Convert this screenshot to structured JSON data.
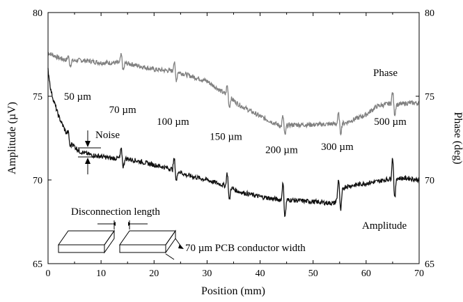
{
  "chart_data": {
    "type": "line",
    "xlabel": "Position (mm)",
    "ylabel_left": "Amplitude (µV)",
    "ylabel_right": "Phase (deg)",
    "xlim": [
      0,
      70
    ],
    "ylim_left": [
      65,
      80
    ],
    "ylim_right": [
      65,
      80
    ],
    "x_ticks": [
      "0",
      "10",
      "20",
      "30",
      "40",
      "50",
      "60",
      "70"
    ],
    "y_ticks_left": [
      "65",
      "70",
      "75",
      "80"
    ],
    "y_ticks_right": [
      "65",
      "70",
      "75",
      "80"
    ],
    "grid": false,
    "series": [
      {
        "name": "Phase",
        "color": "#808080",
        "x": [
          0,
          2,
          4,
          6,
          8,
          10,
          14,
          16,
          20,
          24,
          26,
          30,
          34,
          36,
          40,
          44,
          46,
          50,
          54,
          56,
          60,
          62,
          65,
          66,
          68,
          70
        ],
        "y": [
          77.6,
          77.3,
          77.1,
          77.15,
          77.1,
          77.0,
          77.0,
          76.9,
          76.6,
          76.5,
          76.3,
          75.9,
          75.0,
          74.5,
          73.8,
          73.2,
          73.3,
          73.3,
          73.35,
          73.4,
          73.9,
          74.4,
          74.6,
          74.5,
          74.6,
          74.6
        ]
      },
      {
        "name": "Amplitude",
        "color": "#111111",
        "x": [
          0,
          0.5,
          1,
          2,
          3,
          4,
          5,
          6,
          8,
          10,
          12,
          14,
          16,
          20,
          24,
          26,
          30,
          34,
          36,
          40,
          44,
          46,
          50,
          54,
          56,
          60,
          62,
          65,
          66,
          68,
          70
        ],
        "y": [
          76.6,
          75.4,
          74.8,
          73.8,
          73.1,
          72.4,
          72.0,
          71.7,
          71.5,
          71.4,
          71.3,
          71.3,
          71.2,
          70.9,
          70.6,
          70.3,
          70.0,
          69.6,
          69.3,
          69.0,
          68.8,
          68.8,
          68.7,
          68.6,
          69.6,
          69.8,
          69.9,
          70.1,
          70.1,
          70.1,
          70.0
        ]
      }
    ],
    "spikes": [
      {
        "series": "Phase",
        "x": [
          4,
          14,
          24,
          34,
          44.5,
          55,
          65.2
        ],
        "amp": [
          0.4,
          0.7,
          0.8,
          0.9,
          0.9,
          0.9,
          1.0
        ]
      },
      {
        "series": "Amplitude",
        "x": [
          4,
          14,
          24,
          34,
          44.5,
          55,
          65.2
        ],
        "amp": [
          0.5,
          0.8,
          1.0,
          1.2,
          1.5,
          1.6,
          1.9
        ]
      }
    ],
    "annotations": {
      "phase_label": "Phase",
      "amplitude_label": "Amplitude",
      "noise_label": "Noise",
      "widths": [
        {
          "text": "50 µm",
          "x": 3.0,
          "y": 74.8
        },
        {
          "text": "70 µm",
          "x": 11.5,
          "y": 74.0
        },
        {
          "text": "100 µm",
          "x": 20.5,
          "y": 73.3
        },
        {
          "text": "150 µm",
          "x": 30.5,
          "y": 72.4
        },
        {
          "text": "200 µm",
          "x": 41.0,
          "y": 71.6
        },
        {
          "text": "300 µm",
          "x": 51.5,
          "y": 71.8
        },
        {
          "text": "500 µm",
          "x": 61.5,
          "y": 73.3
        }
      ],
      "disconnection_label": "Disconnection length",
      "conductor_label": "70 µm PCB conductor width"
    }
  }
}
